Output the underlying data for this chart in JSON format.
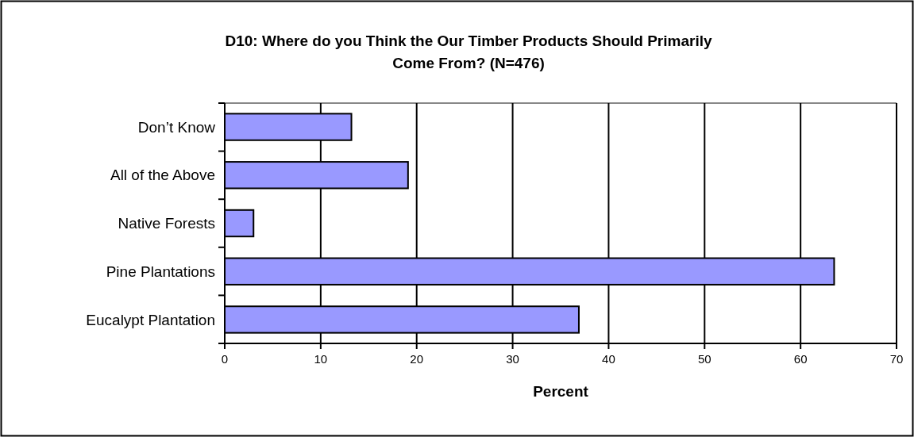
{
  "chart_data": {
    "type": "bar",
    "orientation": "horizontal",
    "title": "D10: Where do you Think the Our Timber Products Should Primarily Come From? (N=476)",
    "xlabel": "Percent",
    "categories": [
      "Don’t Know",
      "All of the Above",
      "Native Forests",
      "Pine Plantations",
      "Eucalypt Plantation"
    ],
    "values": [
      13.2,
      19.1,
      3.0,
      63.5,
      36.9
    ],
    "color": "#9999ff",
    "xlim": [
      0,
      70
    ],
    "xticks": [
      0,
      10,
      20,
      30,
      40,
      50,
      60,
      70
    ],
    "grid": "x"
  }
}
